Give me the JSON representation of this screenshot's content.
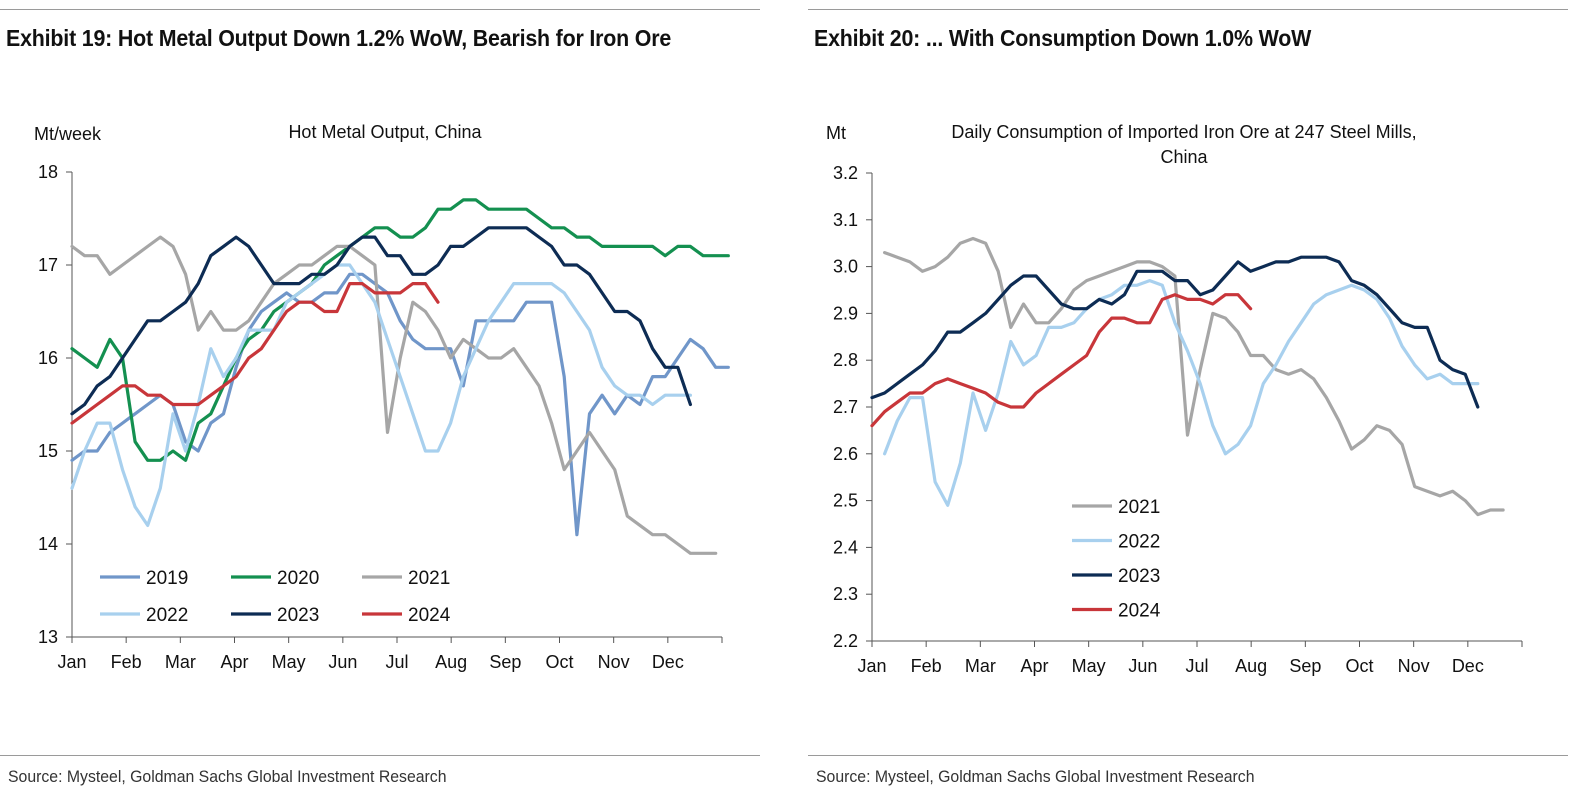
{
  "exhibits": [
    {
      "title": "Exhibit 19: Hot Metal Output Down 1.2% WoW, Bearish for Iron Ore",
      "source": "Source: Mysteel, Goldman Sachs Global Investment Research"
    },
    {
      "title": "Exhibit 20: ... With Consumption Down 1.0% WoW",
      "source": "Source: Mysteel, Goldman Sachs Global Investment Research"
    }
  ],
  "chart_data": [
    {
      "type": "line",
      "title": "Hot Metal Output, China",
      "ylabel": "Mt/week",
      "xlabel": "",
      "ylim": [
        13,
        18
      ],
      "yticks": [
        13,
        14,
        15,
        16,
        17,
        18
      ],
      "ytick_labels": [
        "13",
        "14",
        "15",
        "16",
        "17",
        "18"
      ],
      "x_unit": "week",
      "xlim": [
        1,
        52.5
      ],
      "x_tick_labels": [
        "Jan",
        "Feb",
        "Mar",
        "Apr",
        "May",
        "Jun",
        "Jul",
        "Aug",
        "Sep",
        "Oct",
        "Nov",
        "Dec"
      ],
      "legend": "bottom-left, 3 columns",
      "series": [
        {
          "name": "2019",
          "color": "#7096c9",
          "start": 1,
          "values": [
            14.9,
            15.0,
            15.0,
            15.2,
            15.3,
            15.4,
            15.5,
            15.6,
            15.5,
            15.1,
            15.0,
            15.3,
            15.4,
            15.9,
            16.3,
            16.5,
            16.6,
            16.7,
            16.6,
            16.6,
            16.7,
            16.7,
            16.9,
            16.9,
            16.8,
            16.7,
            16.4,
            16.2,
            16.1,
            16.1,
            16.1,
            15.7,
            16.4,
            16.4,
            16.4,
            16.4,
            16.6,
            16.6,
            16.6,
            15.8,
            14.1,
            15.4,
            15.6,
            15.4,
            15.6,
            15.5,
            15.8,
            15.8,
            16.0,
            16.2,
            16.1,
            15.9,
            15.9
          ]
        },
        {
          "name": "2020",
          "color": "#149050",
          "start": 1,
          "values": [
            16.1,
            16.0,
            15.9,
            16.2,
            16.0,
            15.1,
            14.9,
            14.9,
            15.0,
            14.9,
            15.3,
            15.4,
            15.7,
            16.0,
            16.2,
            16.3,
            16.5,
            16.6,
            16.7,
            16.8,
            17.0,
            17.1,
            17.2,
            17.3,
            17.4,
            17.4,
            17.3,
            17.3,
            17.4,
            17.6,
            17.6,
            17.7,
            17.7,
            17.6,
            17.6,
            17.6,
            17.6,
            17.5,
            17.4,
            17.4,
            17.3,
            17.3,
            17.2,
            17.2,
            17.2,
            17.2,
            17.2,
            17.1,
            17.2,
            17.2,
            17.1,
            17.1,
            17.1
          ]
        },
        {
          "name": "2021",
          "color": "#a6a6a6",
          "start": 1,
          "values": [
            17.2,
            17.1,
            17.1,
            16.9,
            17.0,
            17.1,
            17.2,
            17.3,
            17.2,
            16.9,
            16.3,
            16.5,
            16.3,
            16.3,
            16.4,
            16.6,
            16.8,
            16.9,
            17.0,
            17.0,
            17.1,
            17.2,
            17.2,
            17.1,
            17.0,
            15.2,
            16.0,
            16.6,
            16.5,
            16.3,
            16.0,
            16.2,
            16.1,
            16.0,
            16.0,
            16.1,
            15.9,
            15.7,
            15.3,
            14.8,
            15.0,
            15.2,
            15.0,
            14.8,
            14.3,
            14.2,
            14.1,
            14.1,
            14.0,
            13.9,
            13.9,
            13.9
          ]
        },
        {
          "name": "2022",
          "color": "#a8d0ee",
          "start": 1,
          "values": [
            14.6,
            15.0,
            15.3,
            15.3,
            14.8,
            14.4,
            14.2,
            14.6,
            15.4,
            15.0,
            15.5,
            16.1,
            15.8,
            16.0,
            16.3,
            16.3,
            16.3,
            16.6,
            16.7,
            16.8,
            16.9,
            17.0,
            17.0,
            16.8,
            16.6,
            16.2,
            15.8,
            15.4,
            15.0,
            15.0,
            15.3,
            15.8,
            16.1,
            16.4,
            16.6,
            16.8,
            16.8,
            16.8,
            16.8,
            16.7,
            16.5,
            16.3,
            15.9,
            15.7,
            15.6,
            15.6,
            15.5,
            15.6,
            15.6,
            15.6
          ]
        },
        {
          "name": "2023",
          "color": "#0d2c54",
          "start": 1,
          "values": [
            15.4,
            15.5,
            15.7,
            15.8,
            16.0,
            16.2,
            16.4,
            16.4,
            16.5,
            16.6,
            16.8,
            17.1,
            17.2,
            17.3,
            17.2,
            17.0,
            16.8,
            16.8,
            16.8,
            16.9,
            16.9,
            17.0,
            17.2,
            17.3,
            17.3,
            17.1,
            17.1,
            16.9,
            16.9,
            17.0,
            17.2,
            17.2,
            17.3,
            17.4,
            17.4,
            17.4,
            17.4,
            17.3,
            17.2,
            17.0,
            17.0,
            16.9,
            16.7,
            16.5,
            16.5,
            16.4,
            16.1,
            15.9,
            15.9,
            15.5
          ]
        },
        {
          "name": "2024",
          "color": "#c8363a",
          "start": 1,
          "values": [
            15.3,
            15.4,
            15.5,
            15.6,
            15.7,
            15.7,
            15.6,
            15.6,
            15.5,
            15.5,
            15.5,
            15.6,
            15.7,
            15.8,
            16.0,
            16.1,
            16.3,
            16.5,
            16.6,
            16.6,
            16.5,
            16.5,
            16.8,
            16.8,
            16.7,
            16.7,
            16.7,
            16.8,
            16.8,
            16.6
          ]
        }
      ]
    },
    {
      "type": "line",
      "title": "Daily Consumption of Imported Iron Ore at 247 Steel Mills, China",
      "title_lines": [
        "Daily Consumption of Imported Iron Ore at 247 Steel Mills,",
        "China"
      ],
      "ylabel": "Mt",
      "xlabel": "",
      "ylim": [
        2.2,
        3.2
      ],
      "yticks": [
        2.2,
        2.3,
        2.4,
        2.5,
        2.6,
        2.7,
        2.8,
        2.9,
        3.0,
        3.1,
        3.2
      ],
      "ytick_labels": [
        "2.2",
        "2.3",
        "2.4",
        "2.5",
        "2.6",
        "2.7",
        "2.8",
        "2.9",
        "3.0",
        "3.1",
        "3.2"
      ],
      "x_unit": "week",
      "xlim": [
        1,
        52.5
      ],
      "x_tick_labels": [
        "Jan",
        "Feb",
        "Mar",
        "Apr",
        "May",
        "Jun",
        "Jul",
        "Aug",
        "Sep",
        "Oct",
        "Nov",
        "Dec"
      ],
      "legend": "center-left, 1 column",
      "series": [
        {
          "name": "2021",
          "color": "#a6a6a6",
          "start": 2,
          "values": [
            3.03,
            3.02,
            3.01,
            2.99,
            3.0,
            3.02,
            3.05,
            3.06,
            3.05,
            2.99,
            2.87,
            2.92,
            2.88,
            2.88,
            2.91,
            2.95,
            2.97,
            2.98,
            2.99,
            3.0,
            3.01,
            3.01,
            3.0,
            2.98,
            2.64,
            2.78,
            2.9,
            2.89,
            2.86,
            2.81,
            2.81,
            2.78,
            2.77,
            2.78,
            2.76,
            2.72,
            2.67,
            2.61,
            2.63,
            2.66,
            2.65,
            2.62,
            2.53,
            2.52,
            2.51,
            2.52,
            2.5,
            2.47,
            2.48,
            2.48
          ]
        },
        {
          "name": "2022",
          "color": "#a8d0ee",
          "start": 2,
          "values": [
            2.6,
            2.67,
            2.72,
            2.72,
            2.54,
            2.49,
            2.58,
            2.73,
            2.65,
            2.73,
            2.84,
            2.79,
            2.81,
            2.87,
            2.87,
            2.88,
            2.91,
            2.93,
            2.94,
            2.96,
            2.96,
            2.97,
            2.96,
            2.88,
            2.82,
            2.75,
            2.66,
            2.6,
            2.62,
            2.66,
            2.75,
            2.79,
            2.84,
            2.88,
            2.92,
            2.94,
            2.95,
            2.96,
            2.95,
            2.93,
            2.89,
            2.83,
            2.79,
            2.76,
            2.77,
            2.75,
            2.75,
            2.75
          ]
        },
        {
          "name": "2023",
          "color": "#0d2c54",
          "start": 1,
          "values": [
            2.72,
            2.73,
            2.75,
            2.77,
            2.79,
            2.82,
            2.86,
            2.86,
            2.88,
            2.9,
            2.93,
            2.96,
            2.98,
            2.98,
            2.95,
            2.92,
            2.91,
            2.91,
            2.93,
            2.92,
            2.94,
            2.99,
            2.99,
            2.99,
            2.97,
            2.97,
            2.94,
            2.95,
            2.98,
            3.01,
            2.99,
            3.0,
            3.01,
            3.01,
            3.02,
            3.02,
            3.02,
            3.01,
            2.97,
            2.96,
            2.94,
            2.91,
            2.88,
            2.87,
            2.87,
            2.8,
            2.78,
            2.77,
            2.7
          ]
        },
        {
          "name": "2024",
          "color": "#c8363a",
          "start": 1,
          "values": [
            2.66,
            2.69,
            2.71,
            2.73,
            2.73,
            2.75,
            2.76,
            2.75,
            2.74,
            2.73,
            2.71,
            2.7,
            2.7,
            2.73,
            2.75,
            2.77,
            2.79,
            2.81,
            2.86,
            2.89,
            2.89,
            2.88,
            2.88,
            2.93,
            2.94,
            2.93,
            2.93,
            2.92,
            2.94,
            2.94,
            2.91
          ]
        }
      ]
    }
  ]
}
